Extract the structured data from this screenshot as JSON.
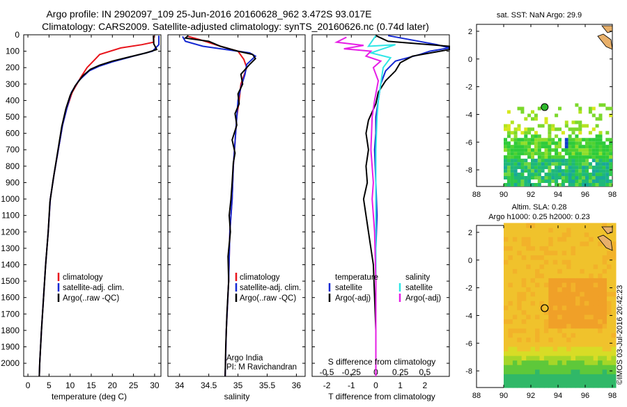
{
  "header": {
    "title_line1": "Argo profile: IN 2902097_109 25-Jun-2016 20160628_962 3.472S 93.017E",
    "title_line2": "Climatology: CARS2009. Satellite-adjusted climatology: synTS_20160626.nc (0.74d later)"
  },
  "colors": {
    "climatology": "#e8141b",
    "satellite": "#1428d2",
    "argo": "#000000",
    "satellite_s": "#2ee6e6",
    "argo_s": "#e61ee6"
  },
  "chart_data": [
    {
      "type": "line",
      "id": "temperature",
      "xlabel": "temperature (deg C)",
      "xlim": [
        -1,
        31.5
      ],
      "xticks": [
        0,
        5,
        10,
        15,
        20,
        25,
        30
      ],
      "ylim": [
        2080,
        0
      ],
      "yticks": [
        0,
        100,
        200,
        300,
        400,
        500,
        600,
        700,
        800,
        900,
        1000,
        1100,
        1200,
        1300,
        1400,
        1500,
        1600,
        1700,
        1800,
        1900,
        2000
      ],
      "legend": [
        "climatology",
        "satellite-adj. clim.",
        "Argo(..raw -QC)"
      ],
      "series": [
        {
          "name": "climatology",
          "color": "#e8141b",
          "points": [
            [
              29.8,
              5
            ],
            [
              29.8,
              45
            ],
            [
              27,
              60
            ],
            [
              22,
              80
            ],
            [
              17,
              120
            ],
            [
              15.5,
              160
            ],
            [
              14,
              200
            ],
            [
              12.5,
              260
            ],
            [
              10.5,
              350
            ],
            [
              9.2,
              450
            ],
            [
              8.2,
              550
            ],
            [
              7.2,
              700
            ],
            [
              6.2,
              850
            ],
            [
              5.3,
              1000
            ],
            [
              4.8,
              1200
            ],
            [
              4.2,
              1400
            ],
            [
              3.7,
              1600
            ],
            [
              3.2,
              1800
            ],
            [
              2.8,
              2000
            ],
            [
              2.7,
              2080
            ]
          ]
        },
        {
          "name": "satellite-adj. clim.",
          "color": "#1428d2",
          "points": [
            [
              31,
              5
            ],
            [
              31,
              60
            ],
            [
              29.5,
              100
            ],
            [
              25,
              130
            ],
            [
              20,
              165
            ],
            [
              17,
              190
            ],
            [
              14.5,
              220
            ],
            [
              12,
              280
            ],
            [
              10.3,
              350
            ],
            [
              9.2,
              450
            ],
            [
              8.2,
              550
            ],
            [
              7.2,
              700
            ],
            [
              6.2,
              850
            ],
            [
              5.3,
              1000
            ],
            [
              4.8,
              1200
            ],
            [
              4.2,
              1400
            ],
            [
              3.7,
              1600
            ],
            [
              3.2,
              1800
            ],
            [
              2.8,
              2000
            ],
            [
              2.7,
              2080
            ]
          ]
        },
        {
          "name": "Argo(..raw -QC)",
          "color": "#000000",
          "points": [
            [
              29.7,
              5
            ],
            [
              29.8,
              55
            ],
            [
              30.5,
              90
            ],
            [
              28,
              110
            ],
            [
              24,
              135
            ],
            [
              20,
              160
            ],
            [
              17,
              185
            ],
            [
              14.8,
              210
            ],
            [
              13,
              250
            ],
            [
              11.2,
              310
            ],
            [
              10,
              370
            ],
            [
              9,
              450
            ],
            [
              8,
              560
            ],
            [
              7,
              720
            ],
            [
              6,
              880
            ],
            [
              5.2,
              1020
            ],
            [
              4.8,
              1200
            ],
            [
              4.2,
              1400
            ],
            [
              3.7,
              1600
            ],
            [
              3.2,
              1800
            ],
            [
              2.8,
              2000
            ],
            [
              2.7,
              2080
            ]
          ]
        }
      ]
    },
    {
      "type": "line",
      "id": "salinity",
      "xlabel": "salinity",
      "xlim": [
        33.8,
        36.15
      ],
      "xticks": [
        34,
        34.5,
        35,
        35.5,
        36
      ],
      "ylim": [
        2080,
        0
      ],
      "legend": [
        "climatology",
        "satellite-adj. clim.",
        "Argo(..raw -QC)"
      ],
      "annotations": [
        "Argo India",
        "PI: M Ravichandran"
      ],
      "series": [
        {
          "name": "climatology",
          "color": "#e8141b",
          "points": [
            [
              34.15,
              10
            ],
            [
              34.35,
              30
            ],
            [
              34.7,
              70
            ],
            [
              35.0,
              100
            ],
            [
              35.1,
              150
            ],
            [
              35.15,
              200
            ],
            [
              35.05,
              300
            ],
            [
              35.02,
              400
            ],
            [
              34.98,
              500
            ],
            [
              34.95,
              650
            ],
            [
              34.92,
              800
            ],
            [
              34.9,
              1000
            ],
            [
              34.86,
              1200
            ],
            [
              34.84,
              1500
            ],
            [
              34.8,
              1800
            ],
            [
              34.78,
              2080
            ]
          ]
        },
        {
          "name": "satellite-adj. clim.",
          "color": "#1428d2",
          "points": [
            [
              34.05,
              10
            ],
            [
              34.1,
              40
            ],
            [
              34.4,
              70
            ],
            [
              34.8,
              90
            ],
            [
              35.2,
              110
            ],
            [
              35.3,
              130
            ],
            [
              35.15,
              180
            ],
            [
              35.12,
              240
            ],
            [
              35.05,
              320
            ],
            [
              35.0,
              400
            ],
            [
              34.98,
              500
            ],
            [
              34.95,
              650
            ],
            [
              34.92,
              800
            ],
            [
              34.9,
              1000
            ],
            [
              34.86,
              1200
            ],
            [
              34.84,
              1500
            ],
            [
              34.8,
              1800
            ],
            [
              34.78,
              2080
            ]
          ]
        },
        {
          "name": "Argo(..raw -QC)",
          "color": "#000000",
          "points": [
            [
              34.15,
              5
            ],
            [
              34.1,
              20
            ],
            [
              34.5,
              40
            ],
            [
              34.7,
              70
            ],
            [
              35.0,
              100
            ],
            [
              35.25,
              120
            ],
            [
              35.3,
              145
            ],
            [
              35.2,
              180
            ],
            [
              35.05,
              240
            ],
            [
              35.08,
              300
            ],
            [
              35.0,
              360
            ],
            [
              35.02,
              420
            ],
            [
              34.95,
              480
            ],
            [
              34.98,
              550
            ],
            [
              34.9,
              640
            ],
            [
              34.95,
              720
            ],
            [
              34.92,
              780
            ],
            [
              34.9,
              900
            ],
            [
              34.88,
              1000
            ],
            [
              34.85,
              1100
            ],
            [
              34.87,
              1200
            ],
            [
              34.83,
              1350
            ],
            [
              34.84,
              1500
            ],
            [
              34.81,
              1700
            ],
            [
              34.79,
              1900
            ],
            [
              34.78,
              2080
            ]
          ]
        }
      ]
    },
    {
      "type": "line",
      "id": "difference",
      "xlabel": "T difference from climatology",
      "xlabel_top": "S difference from climatology",
      "xlim": [
        -2.6,
        3
      ],
      "xticks": [
        -2,
        -1,
        0,
        1,
        2
      ],
      "xticks_S": [
        "-0.5",
        "-0.25",
        "0",
        "0.25",
        "0.5"
      ],
      "ylim": [
        2080,
        0
      ],
      "legend_T_title": "temperature",
      "legend_S_title": "salinity",
      "legend_T": [
        "satellite",
        "Argo(-adj)"
      ],
      "legend_S": [
        "satellite",
        "Argo(-adj)"
      ],
      "series": [
        {
          "name": "satellite",
          "group": "temperature",
          "color": "#1428d2",
          "points": [
            [
              0.5,
              5
            ],
            [
              2.5,
              60
            ],
            [
              3,
              80
            ],
            [
              2.2,
              100
            ],
            [
              1.8,
              120
            ],
            [
              0.8,
              160
            ],
            [
              0.4,
              220
            ],
            [
              0.2,
              300
            ],
            [
              0.1,
              400
            ],
            [
              0,
              500
            ],
            [
              0,
              600
            ],
            [
              -0.05,
              700
            ],
            [
              0,
              900
            ],
            [
              0.05,
              1100
            ],
            [
              0,
              1300
            ],
            [
              0,
              1500
            ],
            [
              0,
              1800
            ],
            [
              0,
              2080
            ]
          ]
        },
        {
          "name": "Argo(-adj)",
          "group": "temperature",
          "color": "#000000",
          "points": [
            [
              0,
              5
            ],
            [
              0.5,
              40
            ],
            [
              3,
              70
            ],
            [
              3,
              90
            ],
            [
              1.5,
              130
            ],
            [
              1.0,
              170
            ],
            [
              0.8,
              220
            ],
            [
              0.4,
              280
            ],
            [
              0.1,
              350
            ],
            [
              0,
              420
            ],
            [
              -0.3,
              520
            ],
            [
              -0.4,
              600
            ],
            [
              -0.3,
              700
            ],
            [
              -0.4,
              800
            ],
            [
              -0.35,
              900
            ],
            [
              -0.5,
              1000
            ],
            [
              -0.4,
              1100
            ],
            [
              -0.3,
              1200
            ],
            [
              -0.2,
              1300
            ],
            [
              -0.1,
              1400
            ],
            [
              -0.05,
              1600
            ],
            [
              0,
              1800
            ],
            [
              0,
              2080
            ]
          ]
        },
        {
          "name": "satellite",
          "group": "salinity",
          "color": "#2ee6e6",
          "points": [
            [
              0,
              5
            ],
            [
              -0.3,
              70
            ],
            [
              0.8,
              60
            ],
            [
              0.2,
              90
            ],
            [
              -0.2,
              110
            ],
            [
              0.6,
              140
            ],
            [
              0.3,
              200
            ],
            [
              0.2,
              300
            ],
            [
              0.1,
              400
            ],
            [
              0.05,
              500
            ],
            [
              0,
              700
            ],
            [
              0,
              1000
            ],
            [
              0,
              1300
            ],
            [
              0,
              1600
            ],
            [
              0,
              2080
            ]
          ]
        },
        {
          "name": "Argo(-adj)",
          "group": "salinity",
          "color": "#e61ee6",
          "points": [
            [
              -1.2,
              15
            ],
            [
              -1.6,
              45
            ],
            [
              -0.5,
              65
            ],
            [
              -1.3,
              85
            ],
            [
              -0.2,
              100
            ],
            [
              -0.4,
              130
            ],
            [
              0.2,
              160
            ],
            [
              -0.1,
              200
            ],
            [
              0.1,
              280
            ],
            [
              -0.05,
              400
            ],
            [
              -0.15,
              500
            ],
            [
              -0.2,
              700
            ],
            [
              -0.1,
              900
            ],
            [
              -0.15,
              1000
            ],
            [
              -0.05,
              1200
            ],
            [
              0,
              1500
            ],
            [
              0,
              1800
            ],
            [
              0,
              2080
            ]
          ]
        }
      ]
    },
    {
      "type": "heatmap",
      "id": "sst_map",
      "title": "sat. SST: NaN Argo: 29.9",
      "xlim": [
        88,
        98
      ],
      "ylim": [
        -9.2,
        2.5
      ],
      "xticks": [
        88,
        90,
        92,
        94,
        96,
        98
      ],
      "yticks": [
        -8,
        -6,
        -4,
        -2,
        0,
        2
      ],
      "marker": {
        "lon": 93.017,
        "lat": -3.472,
        "fill": "#2db82d"
      }
    },
    {
      "type": "heatmap",
      "id": "sla_map",
      "title_line1": "Altim. SLA: 0.28",
      "title_line2": "Argo h1000: 0.25 h2000: 0.23",
      "xlim": [
        88,
        98
      ],
      "ylim": [
        -9.2,
        2.5
      ],
      "xticks": [
        88,
        90,
        92,
        94,
        96,
        98
      ],
      "yticks": [
        -8,
        -6,
        -4,
        -2,
        0,
        2
      ],
      "marker": {
        "lon": 93.017,
        "lat": -3.472,
        "fill": "none"
      }
    }
  ],
  "watermark": "©IMOS 03-Jul-2016 20:42:23"
}
